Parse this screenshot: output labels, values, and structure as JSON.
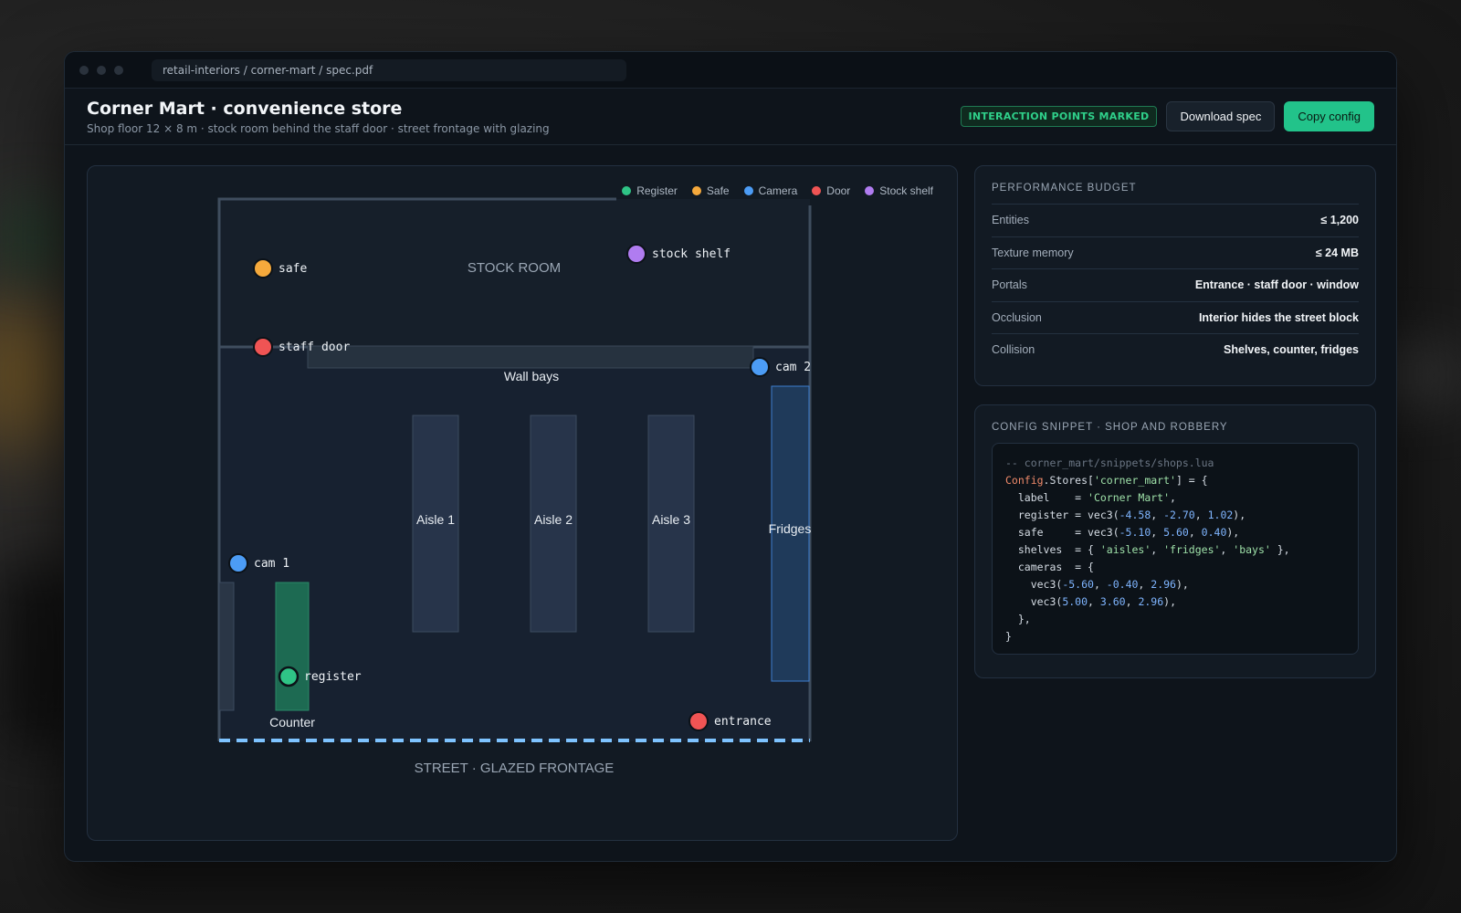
{
  "window": {
    "url": "retail-interiors / corner-mart / spec.pdf"
  },
  "header": {
    "title": "Corner Mart · convenience store",
    "subtitle": "Shop floor 12 × 8 m · stock room behind the staff door · street frontage with glazing",
    "badge": "INTERACTION POINTS MARKED",
    "download_label": "Download spec",
    "copy_label": "Copy config"
  },
  "legend": [
    {
      "label": "Register",
      "color": "#2fc486"
    },
    {
      "label": "Safe",
      "color": "#f5a93c"
    },
    {
      "label": "Camera",
      "color": "#4c9cf5"
    },
    {
      "label": "Door",
      "color": "#f05454"
    },
    {
      "label": "Stock shelf",
      "color": "#b07cf0"
    }
  ],
  "map": {
    "stock_room_label": "STOCK ROOM",
    "street_label": "STREET · GLAZED FRONTAGE",
    "wall_bays_label": "Wall bays",
    "aisles": [
      "Aisle 1",
      "Aisle 2",
      "Aisle 3"
    ],
    "fridges_label": "Fridges",
    "counter_label": "Counter",
    "markers": {
      "safe": "safe",
      "stock_shelf": "stock shelf",
      "staff_door": "staff door",
      "cam2": "cam 2",
      "cam1": "cam 1",
      "register": "register",
      "entrance": "entrance"
    }
  },
  "performance": {
    "title": "PERFORMANCE BUDGET",
    "rows": [
      {
        "label": "Entities",
        "value": "≤ 1,200"
      },
      {
        "label": "Texture memory",
        "value": "≤ 24 MB"
      },
      {
        "label": "Portals",
        "value": "Entrance · staff door · window"
      },
      {
        "label": "Occlusion",
        "value": "Interior hides the street block"
      },
      {
        "label": "Collision",
        "value": "Shelves, counter, fridges"
      }
    ]
  },
  "config": {
    "title": "CONFIG SNIPPET · SHOP AND ROBBERY",
    "comment": "-- corner_mart/snippets/shops.lua",
    "head_kw": "Config",
    "head_rest": ".Stores[",
    "head_key": "'corner_mart'",
    "head_end": "] = {",
    "label_pre": "  label    = ",
    "label_val": "'Corner Mart'",
    "register_pre": "  register = vec3(",
    "register_vals": [
      "-4.58",
      "-2.70",
      "1.02"
    ],
    "safe_pre": "  safe     = vec3(",
    "safe_vals": [
      "-5.10",
      "5.60",
      "0.40"
    ],
    "shelves_pre": "  shelves  = { ",
    "shelves_vals": [
      "'aisles'",
      "'fridges'",
      "'bays'"
    ],
    "cameras_pre": "  cameras  = {",
    "cam_pre": "    vec3(",
    "cam1_vals": [
      "-5.60",
      "-0.40",
      "2.96"
    ],
    "cam2_vals": [
      "5.00",
      "3.60",
      "2.96"
    ],
    "cameras_end": "  },",
    "close": "}"
  }
}
